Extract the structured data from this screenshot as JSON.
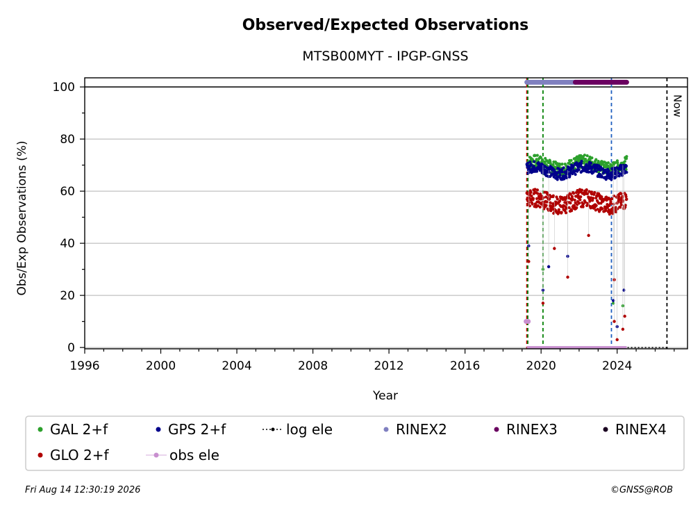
{
  "chart_data": {
    "type": "scatter",
    "title": "Observed/Expected Observations",
    "subtitle": "MTSB00MYT - IPGP-GNSS",
    "xlabel": "Year",
    "ylabel": "Obs/Exp Observations (%)",
    "xlim": [
      1996,
      2027.7
    ],
    "ylim": [
      -0.5,
      103.5
    ],
    "x_ticks": [
      "1996",
      "2000",
      "2004",
      "2008",
      "2012",
      "2016",
      "2020",
      "2024"
    ],
    "y_ticks": [
      "0",
      "20",
      "40",
      "60",
      "80",
      "100"
    ],
    "grid": "horizontal",
    "reference_line_y": 100,
    "now_label": "Now",
    "now_x": 2026.62,
    "event_lines": [
      {
        "x": 2019.25,
        "color": "#cc0000"
      },
      {
        "x": 2019.3,
        "color": "#008000"
      },
      {
        "x": 2020.1,
        "color": "#008000"
      },
      {
        "x": 2023.7,
        "color": "#1f5fbf"
      }
    ],
    "series": [
      {
        "name": "GAL 2+f",
        "color": "#2ca02c",
        "x_start": 2019.3,
        "x_end": 2024.5,
        "base": 70,
        "spread": 2.5
      },
      {
        "name": "GPS 2+f",
        "color": "#00008b",
        "x_start": 2019.25,
        "x_end": 2024.5,
        "base": 68,
        "spread": 2.2
      },
      {
        "name": "GLO 2+f",
        "color": "#b00000",
        "x_start": 2019.25,
        "x_end": 2024.5,
        "base": 56,
        "spread": 3.5
      }
    ],
    "outliers": [
      {
        "x": 2019.35,
        "y": 39,
        "series": "GPS 2+f"
      },
      {
        "x": 2019.35,
        "y": 33,
        "series": "GLO 2+f"
      },
      {
        "x": 2020.1,
        "y": 30,
        "series": "GAL 2+f"
      },
      {
        "x": 2020.1,
        "y": 22,
        "series": "GPS 2+f"
      },
      {
        "x": 2020.1,
        "y": 17,
        "series": "GLO 2+f"
      },
      {
        "x": 2020.4,
        "y": 31,
        "series": "GPS 2+f"
      },
      {
        "x": 2020.7,
        "y": 38,
        "series": "GLO 2+f"
      },
      {
        "x": 2021.4,
        "y": 35,
        "series": "GPS 2+f"
      },
      {
        "x": 2021.4,
        "y": 27,
        "series": "GLO 2+f"
      },
      {
        "x": 2022.5,
        "y": 43,
        "series": "GLO 2+f"
      },
      {
        "x": 2023.8,
        "y": 17,
        "series": "GAL 2+f"
      },
      {
        "x": 2023.8,
        "y": 18,
        "series": "GPS 2+f"
      },
      {
        "x": 2023.85,
        "y": 26,
        "series": "GLO 2+f"
      },
      {
        "x": 2023.85,
        "y": 10,
        "series": "GLO 2+f"
      },
      {
        "x": 2024.0,
        "y": 8,
        "series": "GPS 2+f"
      },
      {
        "x": 2024.0,
        "y": 3,
        "series": "GLO 2+f"
      },
      {
        "x": 2024.3,
        "y": 16,
        "series": "GAL 2+f"
      },
      {
        "x": 2024.35,
        "y": 22,
        "series": "GPS 2+f"
      },
      {
        "x": 2024.4,
        "y": 12,
        "series": "GLO 2+f"
      },
      {
        "x": 2024.3,
        "y": 7,
        "series": "GLO 2+f"
      }
    ],
    "obs_ele": {
      "name": "obs ele",
      "color": "#c88fcf",
      "x_start": 2019.25,
      "x_end": 2024.5,
      "y": 0,
      "first_y": 10
    },
    "log_ele": {
      "name": "log ele",
      "x_start": 2019.25,
      "x_end": 2026.62,
      "y": 0
    },
    "rinex": [
      {
        "name": "RINEX2",
        "color": "#8080c0",
        "x_start": 2019.25,
        "x_end": 2021.8,
        "y": 101.8
      },
      {
        "name": "RINEX3",
        "color": "#6a0060",
        "x_start": 2021.8,
        "x_end": 2024.5,
        "y": 101.8
      },
      {
        "name": "RINEX4",
        "color": "#1a0020"
      }
    ],
    "legend": {
      "placement": "bottom",
      "entries": [
        "GAL 2+f",
        "GPS 2+f",
        "log ele",
        "RINEX2",
        "RINEX3",
        "RINEX4",
        "GLO 2+f",
        "obs ele"
      ]
    }
  },
  "footer": {
    "timestamp": "Fri Aug 14 12:30:19 2026",
    "credit": "©GNSS@ROB"
  }
}
